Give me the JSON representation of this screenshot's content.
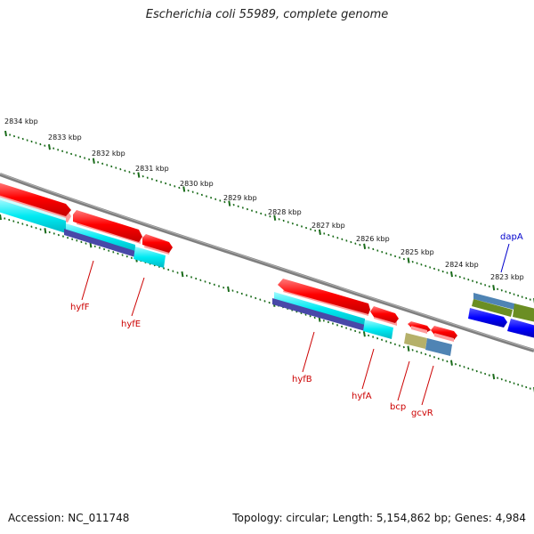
{
  "title": "Escherichia coli 55989, complete genome",
  "ruler": {
    "ticks": [
      "2834 kbp",
      "2833 kbp",
      "2832 kbp",
      "2831 kbp",
      "2830 kbp",
      "2829 kbp",
      "2828 kbp",
      "2827 kbp",
      "2826 kbp",
      "2825 kbp",
      "2824 kbp",
      "2823 kbp"
    ]
  },
  "gene_labels": {
    "hyfF": "hyfF",
    "hyfE": "hyfE",
    "hyfB": "hyfB",
    "hyfA": "hyfA",
    "bcp": "bcp",
    "gcvR": "gcvR",
    "dapA": "dapA"
  },
  "colors": {
    "gene_label": "#cc0000",
    "highlight_label": "#0000cc",
    "backbone": "#808080",
    "tick": "#1a6b1a",
    "forward_cds": "#ff0000",
    "reverse_cds": "#00e5ee",
    "reverse_cds_shadow": "#4444aa",
    "misc_tan": "#b5b06a",
    "misc_steel": "#4f84b4",
    "misc_olive": "#6b8e23",
    "blue_cds": "#0000ff"
  },
  "footer": {
    "accession": "Accession: NC_011748",
    "summary": "Topology: circular; Length: 5,154,862 bp; Genes: 4,984"
  }
}
